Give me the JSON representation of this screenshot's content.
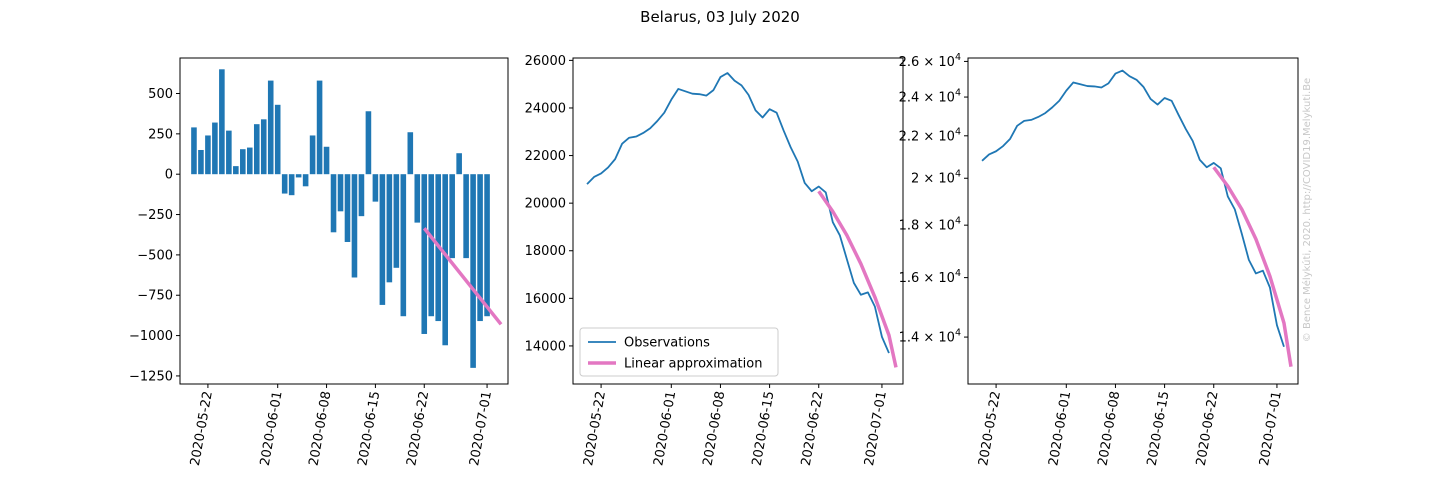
{
  "title": "Belarus, 03 July 2020",
  "watermark": "© Bence Mélykúti, 2020. http://COVID19.Melykuti.Be",
  "colors": {
    "observations": "#1f77b4",
    "approximation": "#e377c2",
    "axes": "#000000",
    "watermark": "#c8c8c8"
  },
  "chart_data": [
    {
      "type": "bar",
      "description_series": "daily change in active cases",
      "x_start": "2020-05-20",
      "xlim": [
        "2020-05-18",
        "2020-07-04"
      ],
      "ylim": [
        -1300,
        720
      ],
      "yticks": [
        -1250,
        -1000,
        -750,
        -500,
        -250,
        0,
        250,
        500
      ],
      "ytick_labels": [
        "−1250",
        "−1000",
        "−750",
        "−500",
        "−250",
        "0",
        "250",
        "500"
      ],
      "xticks": [
        "2020-05-22",
        "2020-06-01",
        "2020-06-08",
        "2020-06-15",
        "2020-06-22",
        "2020-07-01"
      ],
      "values": [
        290,
        150,
        240,
        320,
        650,
        270,
        50,
        155,
        165,
        310,
        340,
        580,
        430,
        -120,
        -130,
        -20,
        -75,
        240,
        580,
        170,
        -360,
        -230,
        -420,
        -640,
        -260,
        390,
        -170,
        -810,
        -670,
        -580,
        -880,
        260,
        -300,
        -990,
        -880,
        -910,
        -1060,
        -520,
        130,
        -520,
        -1200,
        -910,
        -880
      ],
      "series": [
        {
          "name": "",
          "values_ref": "values"
        },
        {
          "name": "",
          "x": [
            "2020-06-22",
            "2020-07-03"
          ],
          "values": [
            -335,
            -930
          ]
        }
      ]
    },
    {
      "type": "line",
      "xlim": [
        "2020-05-18",
        "2020-07-04"
      ],
      "ylim": [
        12400,
        26100
      ],
      "yticks": [
        14000,
        16000,
        18000,
        20000,
        22000,
        24000,
        26000
      ],
      "ytick_labels": [
        "14000",
        "16000",
        "18000",
        "20000",
        "22000",
        "24000",
        "26000"
      ],
      "xticks": [
        "2020-05-22",
        "2020-06-01",
        "2020-06-08",
        "2020-06-15",
        "2020-06-22",
        "2020-07-01"
      ],
      "x_start": "2020-05-20",
      "series": [
        {
          "name": "Observations",
          "values": [
            20800,
            21100,
            21250,
            21500,
            21850,
            22500,
            22750,
            22800,
            22950,
            23150,
            23450,
            23800,
            24350,
            24800,
            24700,
            24600,
            24580,
            24520,
            24750,
            25300,
            25470,
            25150,
            24950,
            24550,
            23900,
            23600,
            23950,
            23800,
            23050,
            22350,
            21750,
            20850,
            20500,
            20700,
            20450,
            19200,
            18650,
            17650,
            16650,
            16150,
            16250,
            15650,
            14380,
            13700
          ]
        },
        {
          "name": "Linear approximation",
          "x": [
            "2020-06-22",
            "2020-06-24",
            "2020-06-26",
            "2020-06-28",
            "2020-06-30",
            "2020-07-02",
            "2020-07-03"
          ],
          "values": [
            20500,
            19650,
            18650,
            17450,
            16050,
            14450,
            13100
          ]
        }
      ],
      "legend_location": "lower left",
      "legend": [
        "Observations",
        "Linear approximation"
      ]
    },
    {
      "type": "line",
      "yscale": "log",
      "xlim": [
        "2020-05-18",
        "2020-07-04"
      ],
      "ylim": [
        12600,
        26200
      ],
      "yticks": [
        14000,
        16000,
        18000,
        20000,
        22000,
        24000,
        26000
      ],
      "ytick_labels": [
        {
          "mant": "1.4 × 10",
          "exp": "4"
        },
        {
          "mant": "1.6 × 10",
          "exp": "4"
        },
        {
          "mant": "1.8 × 10",
          "exp": "4"
        },
        {
          "mant": "2 × 10",
          "exp": "4"
        },
        {
          "mant": "2.2 × 10",
          "exp": "4"
        },
        {
          "mant": "2.4 × 10",
          "exp": "4"
        },
        {
          "mant": "2.6 × 10",
          "exp": "4"
        }
      ],
      "xticks": [
        "2020-05-22",
        "2020-06-01",
        "2020-06-08",
        "2020-06-15",
        "2020-06-22",
        "2020-07-01"
      ],
      "series_ref": "same as chart 2"
    }
  ]
}
